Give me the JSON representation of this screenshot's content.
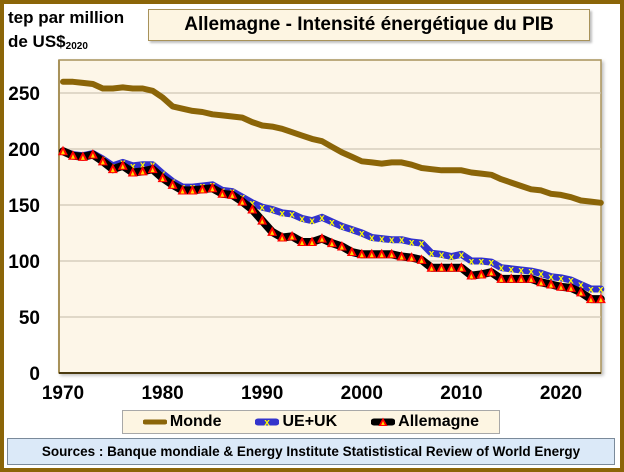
{
  "header": {
    "ylabel_line1": "tep par million",
    "ylabel_line2": "de US$",
    "ylabel_sub": "2020",
    "title": "Allemagne - Intensité énergétique du PIB"
  },
  "legend": {
    "items": [
      {
        "label": "Monde",
        "color": "#8B6508"
      },
      {
        "label": "UE+UK",
        "color": "#3333CC",
        "marker_color": "#FFFF00"
      },
      {
        "label": "Allemagne",
        "color": "#000000",
        "marker_color": "#FF0000"
      }
    ]
  },
  "sources": "Sources : Banque mondiale & Energy Institute Statististical Review of World Energy",
  "chart_data": {
    "type": "line",
    "title": "Allemagne - Intensité énergétique du PIB",
    "xlabel": "",
    "ylabel": "tep par million de US$2020",
    "xlim": [
      1970,
      2024
    ],
    "ylim": [
      0,
      300
    ],
    "yticks": [
      0,
      50,
      100,
      150,
      200,
      250
    ],
    "xticks": [
      1970,
      1980,
      1990,
      2000,
      2010,
      2020
    ],
    "grid": "horizontal",
    "legend_position": "bottom",
    "x": [
      1970,
      1971,
      1972,
      1973,
      1974,
      1975,
      1976,
      1977,
      1978,
      1979,
      1980,
      1981,
      1982,
      1983,
      1984,
      1985,
      1986,
      1987,
      1988,
      1989,
      1990,
      1991,
      1992,
      1993,
      1994,
      1995,
      1996,
      1997,
      1998,
      1999,
      2000,
      2001,
      2002,
      2003,
      2004,
      2005,
      2006,
      2007,
      2008,
      2009,
      2010,
      2011,
      2012,
      2013,
      2014,
      2015,
      2016,
      2017,
      2018,
      2019,
      2020,
      2021,
      2022,
      2023,
      2024
    ],
    "series": [
      {
        "name": "Monde",
        "color": "#8B6508",
        "values": [
          260,
          260,
          259,
          258,
          254,
          254,
          255,
          254,
          254,
          252,
          246,
          238,
          236,
          234,
          233,
          231,
          230,
          229,
          228,
          224,
          221,
          220,
          218,
          215,
          212,
          209,
          207,
          202,
          197,
          193,
          189,
          188,
          187,
          188,
          188,
          186,
          183,
          182,
          181,
          181,
          181,
          179,
          178,
          177,
          173,
          170,
          167,
          164,
          163,
          160,
          159,
          157,
          154,
          153,
          152
        ]
      },
      {
        "name": "UE+UK",
        "color": "#3333CC",
        "values": [
          198,
          195,
          194,
          196,
          191,
          185,
          188,
          185,
          186,
          186,
          178,
          171,
          166,
          166,
          167,
          168,
          163,
          162,
          157,
          152,
          148,
          146,
          143,
          142,
          138,
          136,
          139,
          135,
          131,
          128,
          125,
          121,
          120,
          119,
          119,
          117,
          116,
          107,
          106,
          104,
          106,
          100,
          100,
          99,
          94,
          93,
          92,
          91,
          89,
          86,
          85,
          83,
          79,
          75,
          75
        ]
      },
      {
        "name": "Allemagne",
        "color": "#000000",
        "values": [
          198,
          194,
          193,
          195,
          189,
          182,
          185,
          179,
          180,
          182,
          174,
          168,
          163,
          163,
          164,
          165,
          160,
          159,
          153,
          146,
          136,
          126,
          121,
          122,
          117,
          117,
          120,
          116,
          113,
          108,
          106,
          106,
          106,
          106,
          104,
          103,
          101,
          94,
          94,
          94,
          94,
          87,
          88,
          90,
          84,
          84,
          84,
          84,
          81,
          79,
          77,
          76,
          72,
          66,
          66
        ]
      }
    ]
  }
}
